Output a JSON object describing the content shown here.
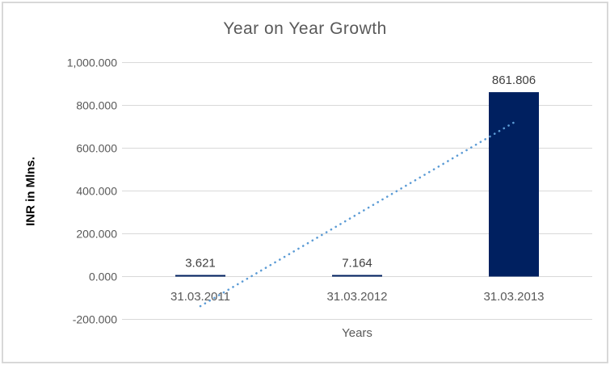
{
  "chart_data": {
    "type": "bar",
    "title": "Year on Year Growth",
    "xlabel": "Years",
    "ylabel": "INR in Mlns.",
    "categories": [
      "31.03.2011",
      "31.03.2012",
      "31.03.2013"
    ],
    "values": [
      3.621,
      7.164,
      861.806
    ],
    "data_labels": [
      "3.621",
      "7.164",
      "861.806"
    ],
    "ylim": [
      -200,
      1000
    ],
    "ytick_step": 200,
    "ytick_labels": [
      "-200.000",
      "0.000",
      "200.000",
      "400.000",
      "600.000",
      "800.000",
      "1,000.000"
    ],
    "grid": true,
    "legend": "none",
    "trendline": {
      "type": "linear",
      "style": "dotted"
    },
    "colors": {
      "bar": "#002060",
      "trendline": "#5b9bd5",
      "gridline": "#d9d9d9",
      "axis_text": "#595959",
      "data_label": "#404040",
      "title_text": "#595959",
      "frame_border": "#d8d8d8",
      "background": "#ffffff"
    }
  }
}
